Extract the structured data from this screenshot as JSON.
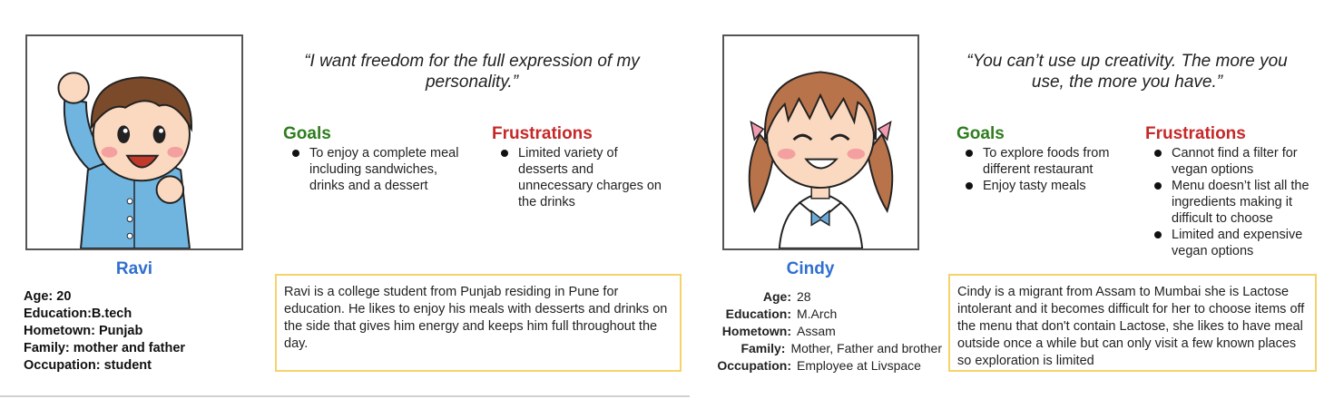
{
  "personas": [
    {
      "name": "Ravi",
      "quote": "“I want freedom for the full expression of my personality.”",
      "goals_title": "Goals",
      "goals": [
        "To enjoy a complete meal including sandwiches, drinks and a dessert"
      ],
      "frustrations_title": "Frustrations",
      "frustrations": [
        "Limited variety of desserts and unnecessary charges on the drinks"
      ],
      "description": "Ravi is a college student from Punjab residing in Pune for education. He likes to enjoy his meals with desserts and drinks on the side that gives him energy and keeps him full throughout the day.",
      "details": [
        "Age: 20",
        "Education:B.tech",
        "Hometown: Punjab",
        "Family: mother and father",
        "Occupation: student"
      ],
      "avatar_icon": "boy-cheering-icon"
    },
    {
      "name": "Cindy",
      "quote": "“You can’t use up creativity. The more you use, the more you have.”",
      "goals_title": "Goals",
      "goals": [
        "To explore foods from different restaurant",
        "Enjoy  tasty meals"
      ],
      "frustrations_title": "Frustrations",
      "frustrations": [
        "Cannot find a filter for vegan options",
        "Menu doesn’t list all the ingredients making it difficult to choose",
        "Limited and expensive vegan options"
      ],
      "description": "Cindy is a migrant from Assam to Mumbai she is Lactose intolerant and it becomes difficult for her to choose items off the menu that don't contain Lactose, she likes to have meal outside once a while but can only visit a few known places so exploration is limited",
      "details": [
        {
          "label": "Age:",
          "value": "28"
        },
        {
          "label": "Education:",
          "value": "M.Arch"
        },
        {
          "label": "Hometown:",
          "value": "Assam"
        },
        {
          "label": "Family:",
          "value": "Mother, Father and brother"
        },
        {
          "label": "Occupation:",
          "value": "Employee at Livspace"
        }
      ],
      "avatar_icon": "girl-smiling-icon"
    }
  ],
  "colors": {
    "name": "#2f6fd0",
    "goals": "#2e7d1e",
    "frustrations": "#c62828",
    "description_border": "#f6d36a"
  }
}
